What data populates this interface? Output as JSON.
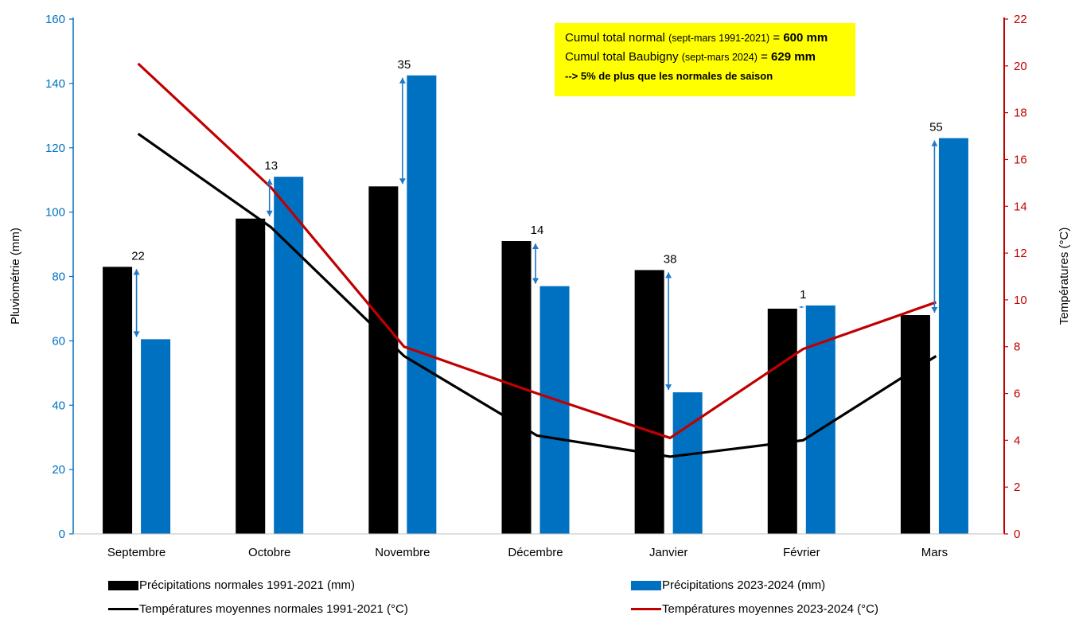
{
  "chart_data": {
    "type": "bar",
    "categories": [
      "Septembre",
      "Octobre",
      "Novembre",
      "Décembre",
      "Janvier",
      "Février",
      "Mars"
    ],
    "series": [
      {
        "name": "Précipitations normales 1991-2021 (mm)",
        "kind": "bar",
        "axis": "left",
        "color": "#000000",
        "values": [
          83,
          98,
          108,
          91,
          82,
          70,
          68
        ]
      },
      {
        "name": "Précipitations 2023-2024 (mm)",
        "kind": "bar",
        "axis": "left",
        "color": "#0070c0",
        "values": [
          60.5,
          111,
          142.5,
          77,
          44,
          71,
          123
        ]
      },
      {
        "name": "Températures moyennes normales 1991-2021 (°C)",
        "kind": "line",
        "axis": "right",
        "color": "#000000",
        "values": [
          17.1,
          13.1,
          7.6,
          4.2,
          3.3,
          4.0,
          7.6
        ]
      },
      {
        "name": "Températures moyennes 2023-2024 (°C)",
        "kind": "line",
        "axis": "right",
        "color": "#c00000",
        "values": [
          20.1,
          14.8,
          8.0,
          6.0,
          4.1,
          7.9,
          9.9
        ]
      }
    ],
    "differences": [
      {
        "category": "Septembre",
        "label": "22"
      },
      {
        "category": "Octobre",
        "label": "13"
      },
      {
        "category": "Novembre",
        "label": "35"
      },
      {
        "category": "Décembre",
        "label": "14"
      },
      {
        "category": "Janvier",
        "label": "38"
      },
      {
        "category": "Février",
        "label": "1"
      },
      {
        "category": "Mars",
        "label": "55"
      }
    ],
    "ylabel": "Pluviométrie (mm)",
    "y2label": "Températures (°C)",
    "ylim": [
      0,
      160
    ],
    "yticks": [
      "0",
      "20",
      "40",
      "60",
      "80",
      "100",
      "120",
      "140",
      "160"
    ],
    "y2lim": [
      0,
      22
    ],
    "y2ticks": [
      "0",
      "2",
      "4",
      "6",
      "8",
      "10",
      "12",
      "14",
      "16",
      "18",
      "20",
      "22"
    ],
    "left_axis_color": "#0070c0",
    "right_axis_color": "#c00000",
    "grid": false
  },
  "annotation": {
    "line1_a": "Cumul total normal ",
    "line1_b": "(sept-mars 1991-2021)",
    "line1_c": " = ",
    "line1_d": "600 mm",
    "line2_a": "Cumul total Baubigny ",
    "line2_b": "(sept-mars 2024)",
    "line2_c": " = ",
    "line2_d": "629 mm",
    "line3": "--> 5% de plus que les normales de saison",
    "background": "#ffff00"
  },
  "legend": {
    "item1": "Précipitations normales 1991-2021 (mm)",
    "item2": "Précipitations 2023-2024 (mm)",
    "item3": "Températures moyennes normales 1991-2021 (°C)",
    "item4": "Températures moyennes 2023-2024 (°C)"
  }
}
